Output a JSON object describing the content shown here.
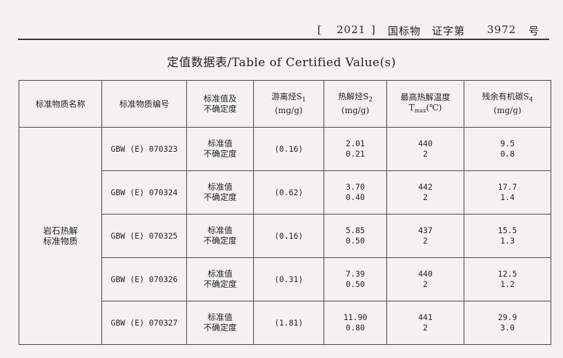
{
  "header": {
    "bracket_open": "[",
    "year": "2021",
    "bracket_close": "]",
    "cert_text": "国标物　证字第",
    "number": "3972",
    "suffix": "号"
  },
  "title": "定值数据表/Table of Certified Value(s)",
  "table": {
    "columns": {
      "name": "标准物质名称",
      "code": "标准物质编号",
      "kind_line1": "标准值及",
      "kind_line2": "不确定度",
      "s1_main": "游离烃S",
      "s1_sub": "1",
      "s1_unit": "(mg/g)",
      "s2_main": "热解烃S",
      "s2_sub": "2",
      "s2_unit": "(mg/g)",
      "tmax_line1": "最高热解温度",
      "tmax_T": "T",
      "tmax_sub": "max",
      "tmax_unit": "(℃)",
      "s4_main": "残余有机碳S",
      "s4_sub": "4",
      "s4_unit": "(mg/g)"
    },
    "group_name": "岩石热解\n标准物质",
    "group_name_line1": "岩石热解",
    "group_name_line2": "标准物质",
    "label_value": "标准值",
    "label_uncertainty": "不确定度",
    "rows": [
      {
        "code": "GBW (E) 070323",
        "s1": "(0.16)",
        "s2_value": "2.01",
        "s2_unc": "0.21",
        "tmax_value": "440",
        "tmax_unc": "2",
        "s4_value": "9.5",
        "s4_unc": "0.8"
      },
      {
        "code": "GBW (E) 070324",
        "s1": "(0.62)",
        "s2_value": "3.70",
        "s2_unc": "0.40",
        "tmax_value": "442",
        "tmax_unc": "2",
        "s4_value": "17.7",
        "s4_unc": "1.4"
      },
      {
        "code": "GBW (E) 070325",
        "s1": "(0.16)",
        "s2_value": "5.85",
        "s2_unc": "0.50",
        "tmax_value": "437",
        "tmax_unc": "2",
        "s4_value": "15.5",
        "s4_unc": "1.3"
      },
      {
        "code": "GBW (E) 070326",
        "s1": "(0.31)",
        "s2_value": "7.39",
        "s2_unc": "0.50",
        "tmax_value": "440",
        "tmax_unc": "2",
        "s4_value": "12.5",
        "s4_unc": "1.2"
      },
      {
        "code": "GBW (E) 070327",
        "s1": "(1.81)",
        "s2_value": "11.90",
        "s2_unc": "0.80",
        "tmax_value": "441",
        "tmax_unc": "2",
        "s4_value": "29.9",
        "s4_unc": "3.0"
      }
    ]
  }
}
